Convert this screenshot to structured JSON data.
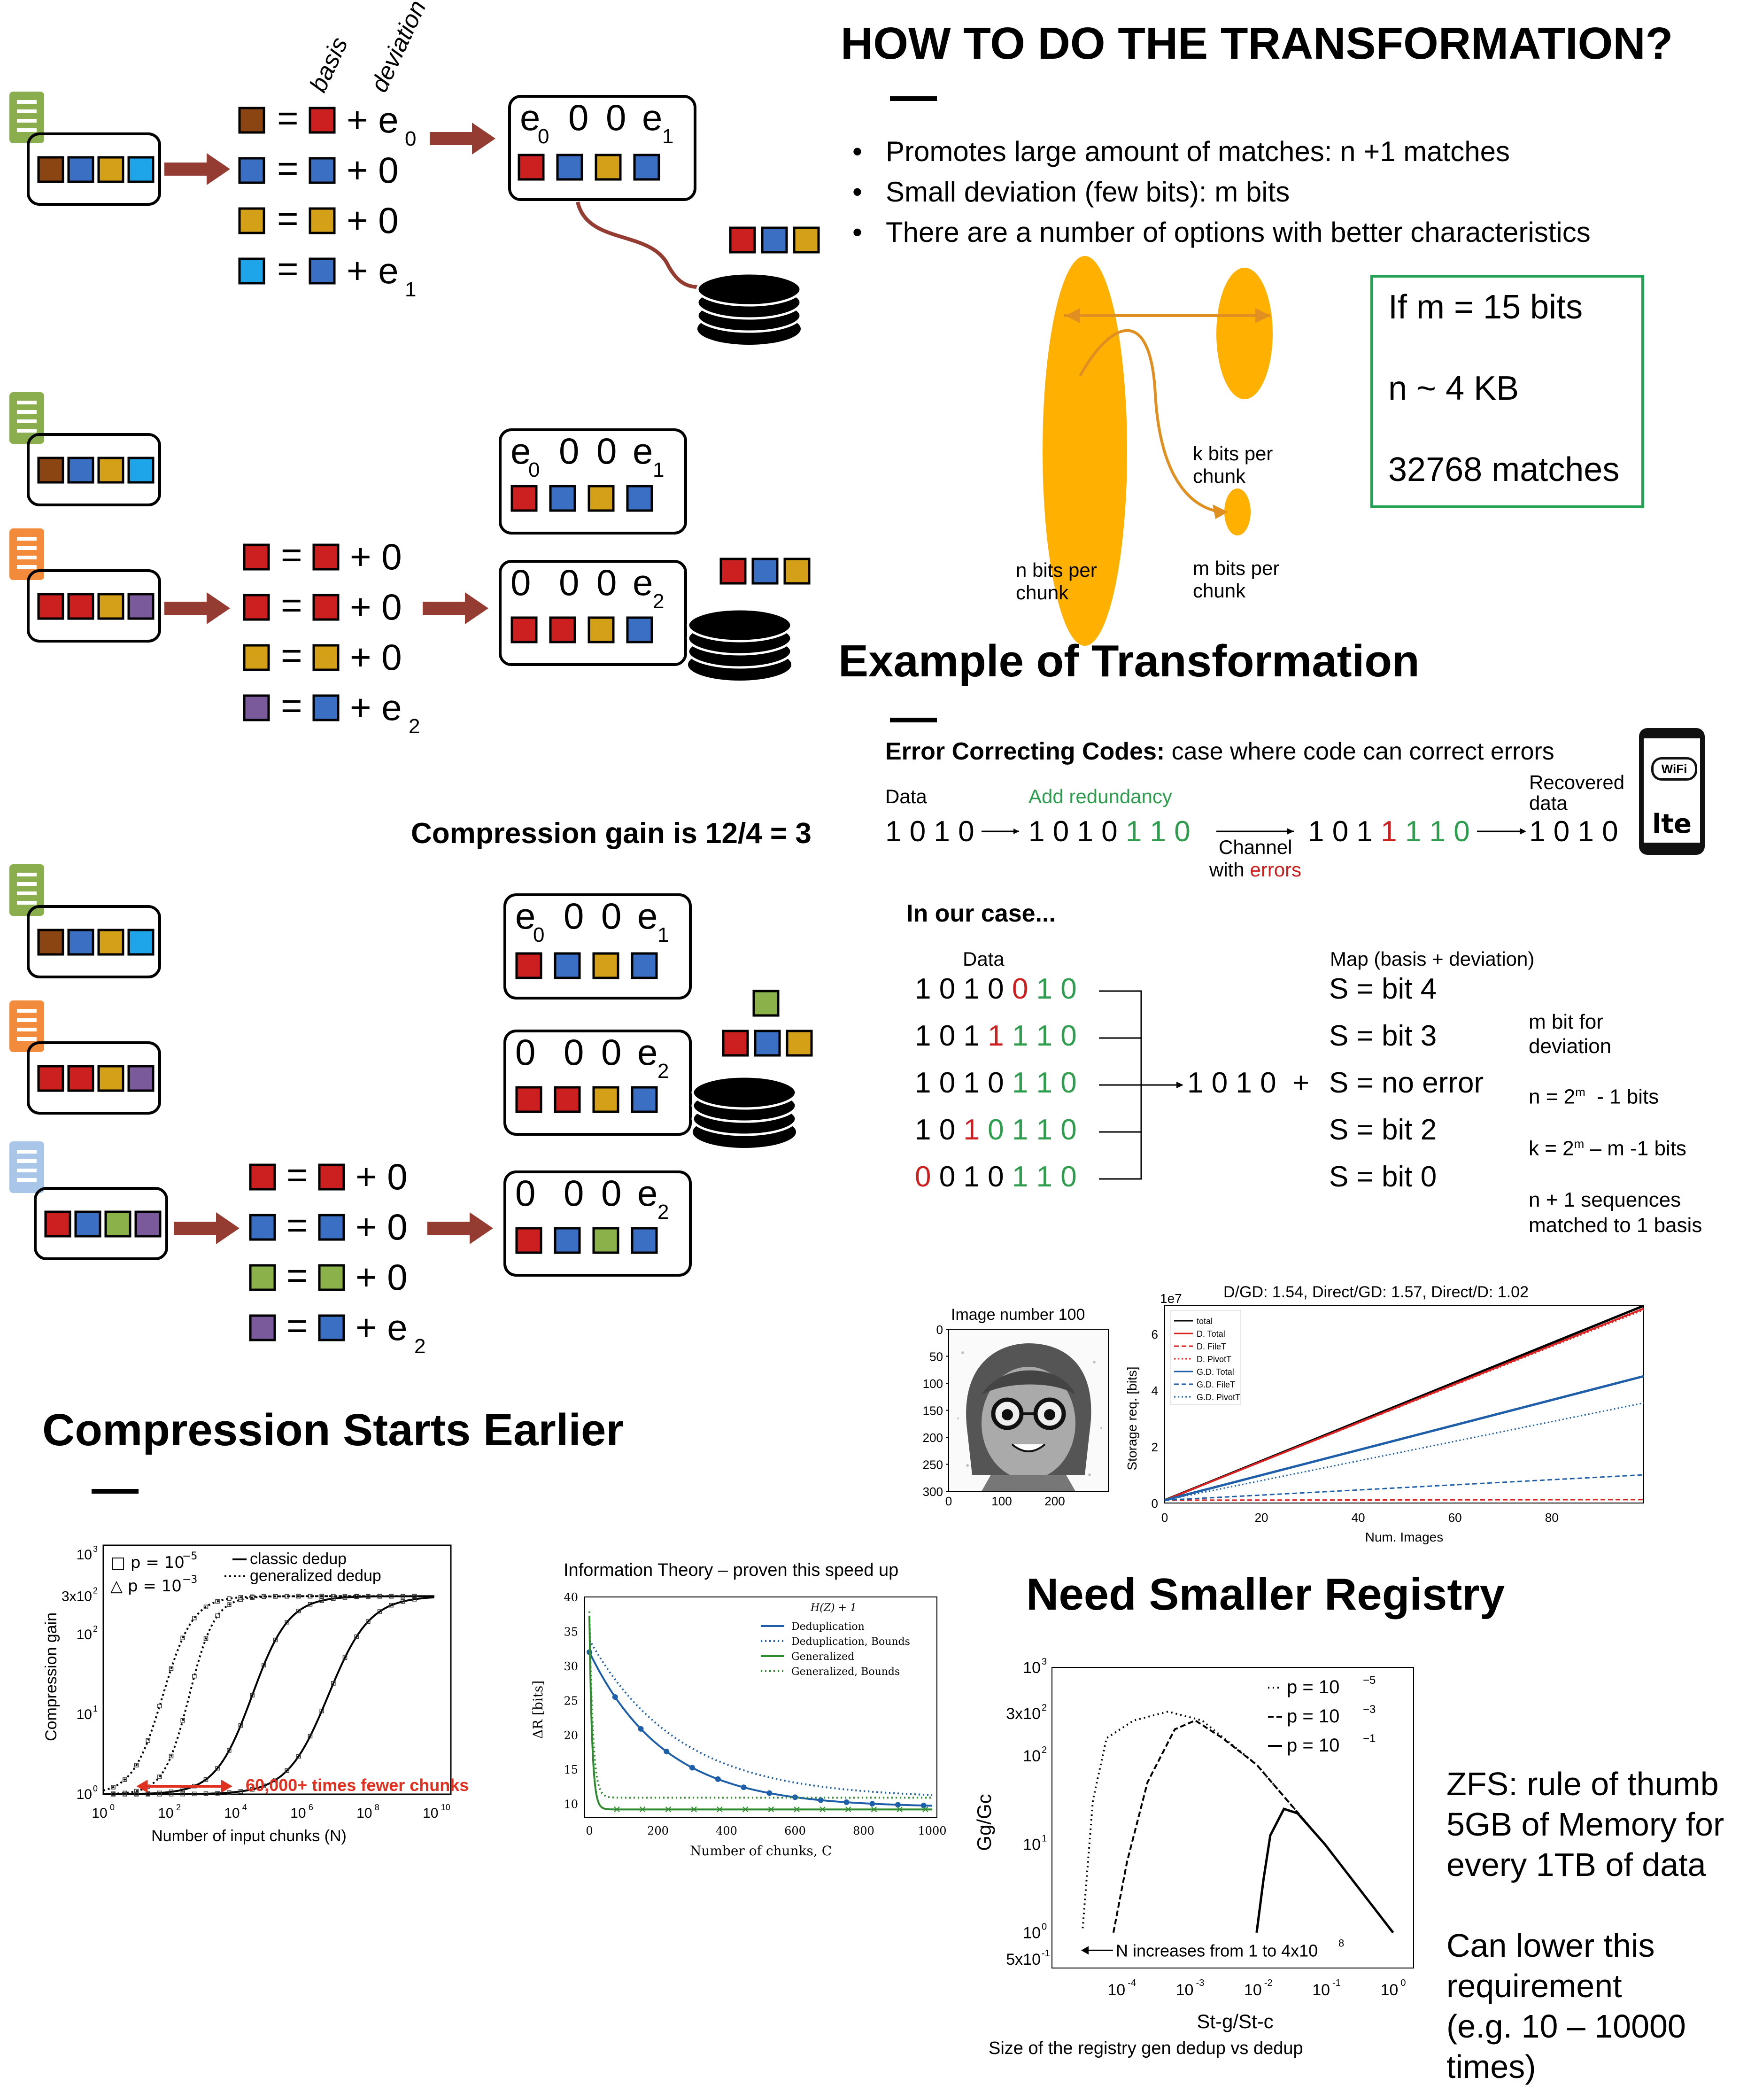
{
  "colors": {
    "brown": "#8B4513",
    "blue": "#3B6FC4",
    "gold": "#D4A017",
    "red": "#CC1F1F",
    "lightblue": "#1EA4E8",
    "green": "#8AB14A",
    "purple": "#7A5A9A",
    "arrow": "#943C32",
    "doc_green": "#8AAE4D",
    "doc_orange": "#F28C3C",
    "doc_blue": "#A9C6E8",
    "orange": "#FFB000",
    "okgreen": "#2E9E4E",
    "box_green": "#24A155"
  },
  "diagram1": {
    "label_basis": "basis",
    "label_deviation": "deviation",
    "rows": [
      {
        "op": "= ",
        "plus": "+ ",
        "term": "e",
        "sub": "0"
      },
      {
        "op": "= ",
        "plus": "+ ",
        "term": "0",
        "sub": ""
      },
      {
        "op": "= ",
        "plus": "+ ",
        "term": "0",
        "sub": ""
      },
      {
        "op": "= ",
        "plus": "+ ",
        "term": "e",
        "sub": "1"
      }
    ],
    "box_header": {
      "a": "e",
      "a_sub": "0",
      "b": "0",
      "c": "0",
      "d": "e",
      "d_sub": "1"
    }
  },
  "diagram2": {
    "box1": {
      "a": "e",
      "a_sub": "0",
      "b": "0",
      "c": "0",
      "d": "e",
      "d_sub": "1"
    },
    "box2": {
      "a": "0",
      "b": "0",
      "c": "0",
      "d": "e",
      "d_sub": "2"
    },
    "rows": [
      {
        "eq": "=",
        "plus": "+ 0"
      },
      {
        "eq": "=",
        "plus": "+ 0"
      },
      {
        "eq": "=",
        "plus": "+ 0"
      },
      {
        "eq": "=",
        "plus": "+ e",
        "sub": "2"
      }
    ]
  },
  "compression_gain_text": "Compression gain is 12/4 = 3",
  "diagram3": {
    "box1": {
      "a": "e",
      "a_sub": "0",
      "b": "0",
      "c": "0",
      "d": "e",
      "d_sub": "1"
    },
    "box2": {
      "a": "0",
      "b": "0",
      "c": "0",
      "d": "e",
      "d_sub": "2"
    },
    "box3": {
      "a": "0",
      "b": "0",
      "c": "0",
      "d": "e",
      "d_sub": "2"
    },
    "rows": [
      {
        "eq": "=",
        "plus": "+ 0"
      },
      {
        "eq": "=",
        "plus": "+ 0"
      },
      {
        "eq": "=",
        "plus": "+ 0"
      },
      {
        "eq": "=",
        "plus": "+ e",
        "sub": "2"
      }
    ]
  },
  "how": {
    "title": "HOW TO DO THE TRANSFORMATION?",
    "bullets": [
      "Promotes large amount of matches: n +1 matches",
      "Small deviation (few bits): m bits",
      "There are a number of options with better characteristics"
    ],
    "n_bits": "n bits per chunk",
    "k_bits": "k bits per chunk",
    "m_bits": "m bits per chunk",
    "box": [
      "If m = 15 bits",
      "n ~ 4 KB",
      "32768 matches"
    ]
  },
  "example": {
    "title": "Example of Transformation",
    "ecc_bold": "Error Correcting Codes:",
    "ecc_rest": " case where code can correct errors",
    "data_label": "Data",
    "add_redundancy": "Add redundancy",
    "recovered": "Recovered data",
    "data_bits": "1 0 1 0",
    "enc_black": "1 0 1 0 ",
    "enc_green": "1 1 0",
    "channel": "Channel",
    "with": "with ",
    "errors": "errors",
    "recv_a": "1 0 1 ",
    "recv_red": "1",
    "recv_green": " 1 1 0",
    "out_bits": "1 0 1 0",
    "wifi": "WiFi",
    "lte": "lte"
  },
  "in_our_case": {
    "title": "In our case...",
    "data_label": "Data",
    "map_label": "Map (basis + deviation)",
    "rows": [
      {
        "a": "1 0 1 0 ",
        "r": "0",
        "g": " 1 0",
        "map": "S = bit 4",
        "pre": ""
      },
      {
        "a": "1 0 1 ",
        "r": "1",
        "g": " 1 1 0",
        "map": "S = bit 3",
        "pre": ""
      },
      {
        "a": "1 0 1 0 ",
        "r": "",
        "g": "1 1 0",
        "map": "S = no error",
        "pre": ""
      },
      {
        "a": "1 0 ",
        "r": "1",
        "g": " 0 1 1 0",
        "map": "S = bit 2",
        "pre": ""
      },
      {
        "a": "",
        "r": "0",
        "g": "",
        "map": "S = bit 0",
        "pre": "0 1 0 ",
        "g2": "1 1 0"
      }
    ],
    "result": "1 0 1 0  +",
    "notes": [
      "m bit for deviation",
      "n = 2",
      "m",
      "  - 1 bits",
      "k = 2",
      "m",
      " – m -1 bits",
      "n + 1 sequences matched to 1 basis"
    ]
  },
  "image_panel": {
    "title": "Image number 100",
    "yticks": [
      "0",
      "50",
      "100",
      "150",
      "200",
      "250",
      "300"
    ],
    "xticks": [
      "0",
      "100",
      "200"
    ]
  },
  "storage_chart": {
    "title": "D/GD: 1.54, Direct/GD: 1.57, Direct/D: 1.02",
    "ylabel": "Storage req. [bits]",
    "xlabel": "Num. Images",
    "exp": "1e7",
    "legend": [
      "total",
      "D. Total",
      "D. FileT",
      "D. PivotT",
      "G.D. Total",
      "G.D. FileT",
      "G.D. PivotT"
    ]
  },
  "compression_earlier": {
    "title": "Compression Starts Earlier"
  },
  "gain_chart": {
    "ylabel": "Compression gain",
    "xlabel": "Number of input chunks (N)",
    "legend_p1": "p = 10",
    "legend_p1_exp": "−5",
    "legend_p2": "p = 10",
    "legend_p2_exp": "−3",
    "legend_classic": "classic dedup",
    "legend_general": "generalized dedup",
    "annot": "60,000+ times fewer chunks",
    "ytick_labels": [
      "10",
      "3x10",
      "10",
      "10",
      "10"
    ],
    "xtick_exps": [
      "0",
      "2",
      "4",
      "6",
      "8",
      "10"
    ]
  },
  "info_chart": {
    "title": "Information Theory – proven this speed up",
    "ylabel": "ΔR [bits]",
    "xlabel": "Number of chunks, C",
    "legend_title": "H(Z) + 1",
    "legend": [
      "Deduplication",
      "Deduplication, Bounds",
      "Generalized",
      "Generalized, Bounds"
    ],
    "yticks": [
      "10",
      "15",
      "20",
      "25",
      "30",
      "35",
      "40"
    ],
    "xticks": [
      "0",
      "200",
      "400",
      "600",
      "800",
      "1000"
    ]
  },
  "registry": {
    "title": "Need Smaller Registry",
    "ylabel": "Gg/Gc",
    "xlabel": "St-g/St-c",
    "caption": "Size of the registry gen dedup vs dedup",
    "legend": [
      "p = 10",
      "p = 10",
      "p = 10"
    ],
    "legend_exp": [
      "−5",
      "−3",
      "−1"
    ],
    "annot": "N increases from 1 to 4x10",
    "annot_exp": "8"
  },
  "zfs": {
    "lines": [
      "ZFS: rule of thumb",
      "5GB of Memory for",
      "every 1TB of data",
      "",
      "Can lower this",
      "requirement",
      "(e.g. 10 – 10000",
      "times)"
    ]
  }
}
